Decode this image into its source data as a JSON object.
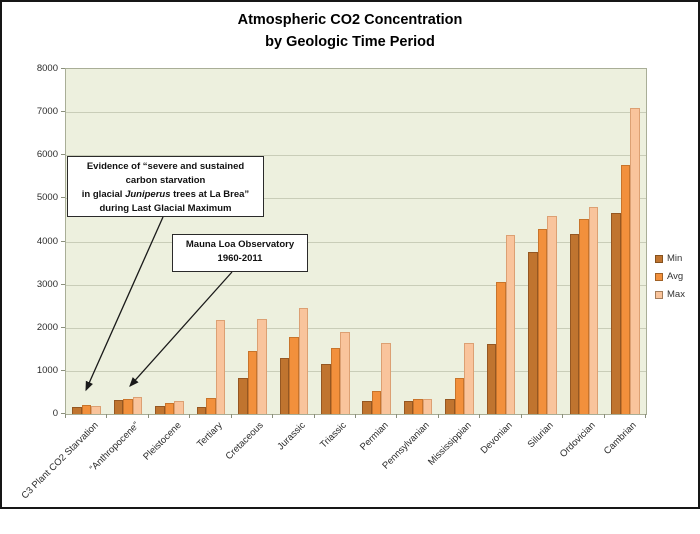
{
  "title": {
    "line1": "Atmospheric CO2 Concentration",
    "line2": "by Geologic Time Period"
  },
  "annotations": {
    "la_brea": {
      "line1": "Evidence of “severe and sustained",
      "line2": "carbon starvation",
      "line3_pre": "in glacial ",
      "line3_italic": "Juniperus",
      "line3_post": " trees at La Brea”",
      "line4": "during Last Glacial Maximum"
    },
    "mauna_loa": {
      "line1": "Mauna Loa Observatory",
      "line2": "1960-2011"
    }
  },
  "colors": {
    "plot_background": "#EDF0DE",
    "gridline": "#C9CDB8",
    "plot_border": "#A9AE97",
    "annotation_border": "#2a2a2a",
    "arrow": "#1a1a1a"
  },
  "chart_data": {
    "type": "bar",
    "title": "Atmospheric CO2 Concentration by Geologic Time Period",
    "xlabel": "",
    "ylabel": "",
    "ylim": [
      0,
      8000
    ],
    "ytick_interval": 1000,
    "grid": true,
    "legend_position": "right",
    "categories": [
      "C3 Plant CO2 Starvation",
      "“Anthropocene”",
      "Pleistocene",
      "Tertiary",
      "Cretaceous",
      "Jurassic",
      "Triassic",
      "Permian",
      "Pennsylvanian",
      "Mississippian",
      "Devonian",
      "Silurian",
      "Ordovician",
      "Cambrian"
    ],
    "series": [
      {
        "name": "Min",
        "fill": "#C0742F",
        "border": "#955722",
        "values": [
          160,
          316,
          180,
          160,
          830,
          1300,
          1160,
          300,
          310,
          340,
          1620,
          3750,
          4180,
          4650
        ]
      },
      {
        "name": "Avg",
        "fill": "#F2903C",
        "border": "#C8742B",
        "values": [
          210,
          352,
          250,
          370,
          1450,
          1780,
          1520,
          540,
          350,
          830,
          3050,
          4300,
          4530,
          5780
        ]
      },
      {
        "name": "Max",
        "fill": "#F9C49C",
        "border": "#DCA073",
        "values": [
          190,
          392,
          310,
          2170,
          2200,
          2450,
          1900,
          1650,
          340,
          1650,
          4150,
          4600,
          4800,
          7100
        ]
      }
    ]
  }
}
